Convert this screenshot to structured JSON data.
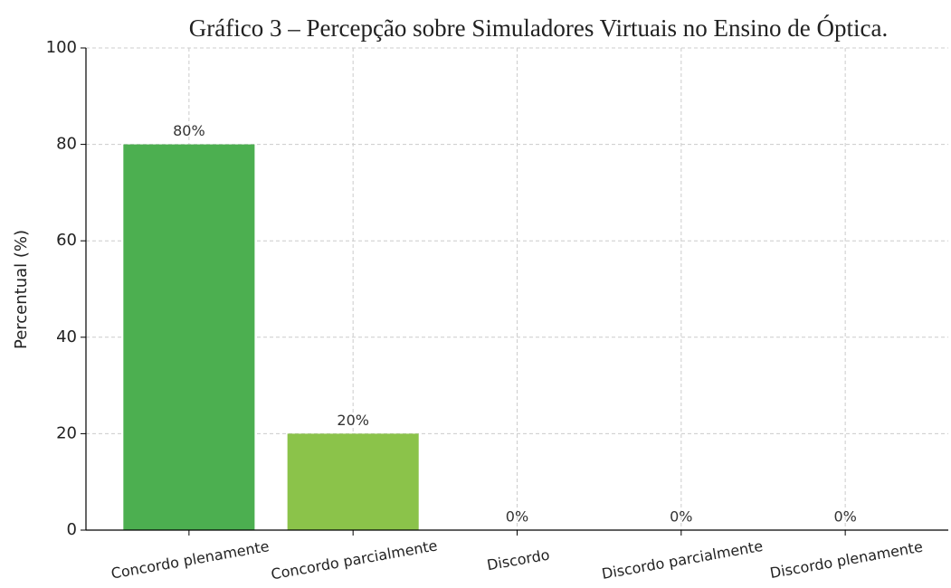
{
  "chart_data": {
    "type": "bar",
    "title": "Gráfico 3 – Percepção sobre Simuladores Virtuais no Ensino de Óptica.",
    "y_label": "Percentual (%)",
    "categories": [
      "Concordo plenamente",
      "Concordo parcialmente",
      "Discordo",
      "Discordo parcialmente",
      "Discordo plenamente"
    ],
    "values": [
      80,
      20,
      0,
      0,
      0
    ],
    "value_labels": [
      "80%",
      "20%",
      "0%",
      "0%",
      "0%"
    ],
    "colors": [
      "#4caf50",
      "#8bc34a",
      "#ffc107",
      "#ff9800",
      "#f44336"
    ],
    "ylim": [
      0,
      100
    ],
    "yticks": [
      0,
      20,
      40,
      60,
      80,
      100
    ],
    "grid": true
  }
}
